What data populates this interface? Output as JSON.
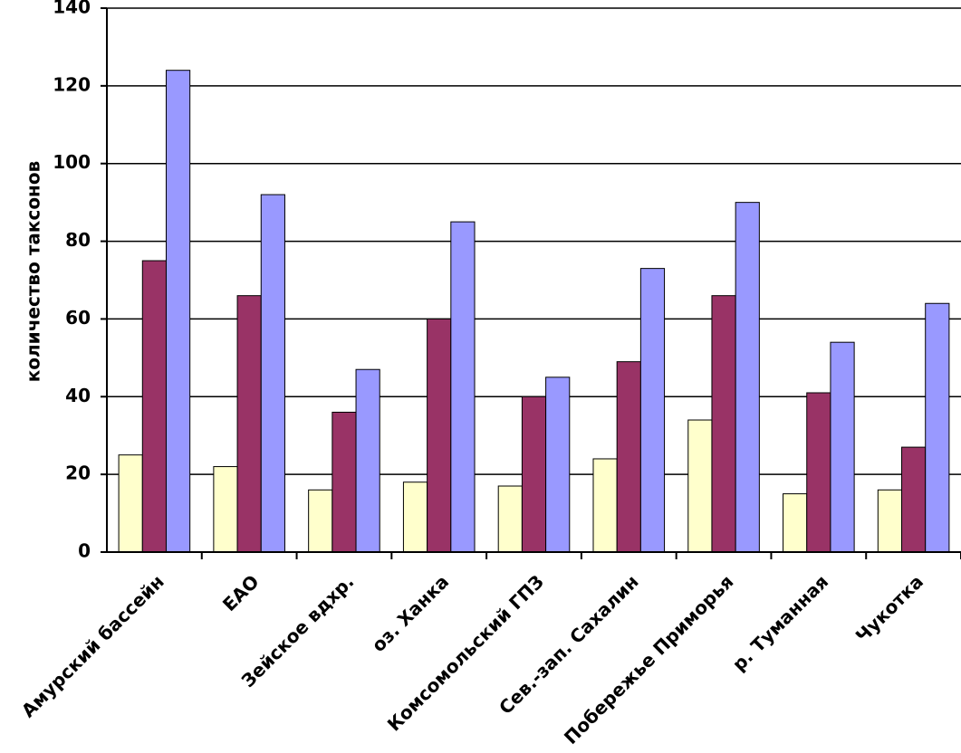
{
  "chart_data": {
    "type": "bar",
    "y_label": "количество таксонов",
    "categories": [
      "Амурский бассейн",
      "ЕАО",
      "Зейское вдхр.",
      "оз. Ханка",
      "Комсомольский ГПЗ",
      "Сев.-зап. Сахалин",
      "Побережье Приморья",
      "р. Туманная",
      "Чукотка"
    ],
    "series": [
      {
        "color": "#ffffcc",
        "values": [
          25,
          22,
          16,
          18,
          17,
          24,
          34,
          15,
          16
        ]
      },
      {
        "color": "#993366",
        "values": [
          75,
          66,
          36,
          60,
          40,
          49,
          66,
          41,
          27
        ]
      },
      {
        "color": "#9999ff",
        "values": [
          124,
          92,
          47,
          85,
          45,
          73,
          90,
          54,
          64
        ]
      }
    ],
    "ylim": [
      0,
      140
    ],
    "yticks": [
      0,
      20,
      40,
      60,
      80,
      100,
      120,
      140
    ],
    "grid": true
  }
}
